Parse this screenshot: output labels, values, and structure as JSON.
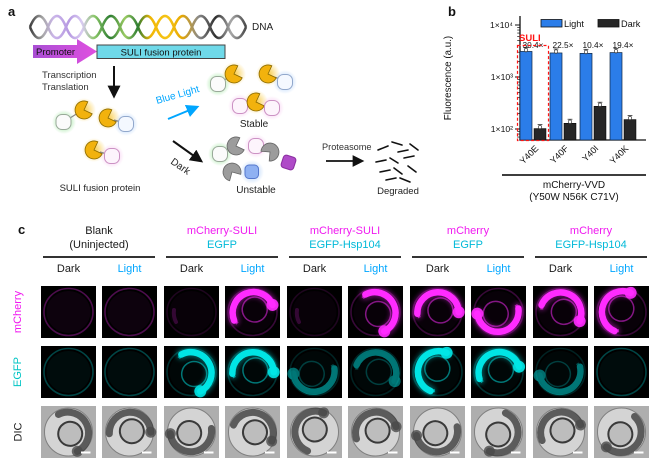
{
  "figure": {
    "panel_a": {
      "label": "a",
      "dna_label": "DNA",
      "promoter_label": "Promoter",
      "gene_label": "SULI fusion protein",
      "transcription_line1": "Transcription",
      "transcription_line2": "Translation",
      "blue_light_label": "Blue Light",
      "dark_label": "Dark",
      "stable_label": "Stable",
      "unstable_label": "Unstable",
      "protein_label": "SULI fusion protein",
      "proteasome_label": "Proteasome",
      "degraded_label": "Degraded",
      "colors": {
        "promoter": "#C643DC",
        "gene_box": "#6FD9E9",
        "blue_light": "#00A6FF",
        "suli_domain": "#F2B20D",
        "dark_domain": "#9C9C9C"
      }
    },
    "panel_c": {
      "label": "c",
      "row_labels": [
        {
          "text": "mCherry",
          "color": "#F019F0"
        },
        {
          "text": "EGFP",
          "color": "#00C4C4"
        },
        {
          "text": "DIC",
          "color": "#222222"
        }
      ],
      "condition_labels": {
        "dark": "Dark",
        "light": "Light",
        "dark_color": "#1A1A1A",
        "light_color": "#00A6FF"
      },
      "groups": [
        {
          "line1": "Blank",
          "line2": "(Uninjected)",
          "line1_color": "#1A1A1A",
          "line2_color": "#1A1A1A"
        },
        {
          "line1": "mCherry-SULI",
          "line2": "EGFP",
          "line1_color": "#F019F0",
          "line2_color": "#00B9D8"
        },
        {
          "line1": "mCherry-SULI",
          "line2": "EGFP-Hsp104",
          "line1_color": "#F019F0",
          "line2_color": "#00B9D8"
        },
        {
          "line1": "mCherry",
          "line2": "EGFP",
          "line1_color": "#F019F0",
          "line2_color": "#00B9D8"
        },
        {
          "line1": "mCherry",
          "line2": "EGFP-Hsp104",
          "line1_color": "#F019F0",
          "line2_color": "#00B9D8"
        }
      ],
      "channel_colors": {
        "mcherry": "#FF2BFF",
        "egfp": "#00E5E5"
      },
      "cells": {
        "mcherry": [
          "ring",
          "ring",
          "none",
          "bright",
          "none",
          "bright",
          "bright",
          "bright",
          "bright",
          "bright"
        ],
        "egfp": [
          "ring",
          "ring",
          "bright",
          "bright",
          "dim",
          "dim",
          "bright",
          "bright",
          "dim",
          "ring"
        ],
        "dic": [
          "embryo",
          "embryo",
          "embryo",
          "embryo",
          "embryo",
          "embryo",
          "embryo",
          "embryo",
          "embryo",
          "embryo"
        ]
      },
      "has_scale_bar": true
    }
  },
  "chart_data": {
    "type": "bar",
    "panel_label": "b",
    "ylabel": "Fluorescence (a.u.)",
    "yscale": "log",
    "ylim": [
      60,
      10000
    ],
    "yticks": [
      {
        "value": 100,
        "label": "1×10²"
      },
      {
        "value": 1000,
        "label": "1×10³"
      },
      {
        "value": 10000,
        "label": "1×10⁴"
      }
    ],
    "categories": [
      "Y40E",
      "Y40F",
      "Y40I",
      "Y40K"
    ],
    "series": [
      {
        "name": "Light",
        "color": "#2B7DE9",
        "values": [
          3100,
          2900,
          2850,
          2950
        ]
      },
      {
        "name": "Dark",
        "color": "#262626",
        "values": [
          102,
          129,
          274,
          152
        ]
      }
    ],
    "fold_labels": [
      "30.4×",
      "22.5×",
      "10.4×",
      "19.4×"
    ],
    "highlight": {
      "label": "SULI",
      "color": "#FF1414",
      "category": "Y40E"
    },
    "axis_group_label_line1": "mCherry-VVD",
    "axis_group_label_line2": "(Y50W N56K C71V)",
    "legend": {
      "position": "top-right",
      "entries": [
        "Light",
        "Dark"
      ]
    }
  }
}
